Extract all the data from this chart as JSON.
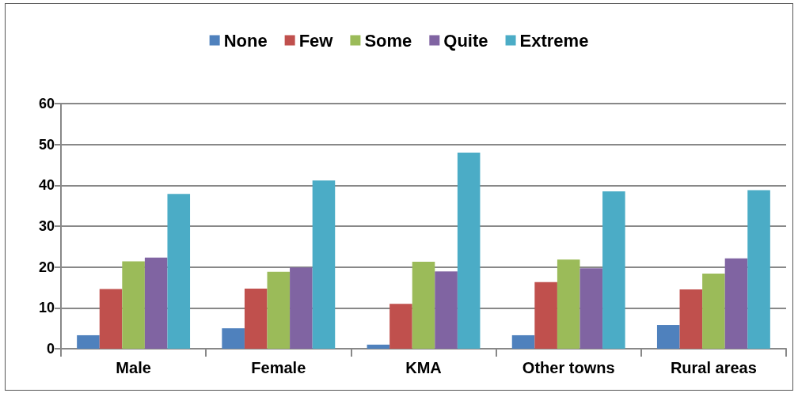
{
  "chart_data": {
    "type": "bar",
    "categories": [
      "Male",
      "Female",
      "KMA",
      "Other towns",
      "Rural areas"
    ],
    "series": [
      {
        "name": "None",
        "color": "#4f81bd",
        "values": [
          3.3,
          5.0,
          1.0,
          3.3,
          5.8
        ]
      },
      {
        "name": "Few",
        "color": "#c0504d",
        "values": [
          14.6,
          14.7,
          11.0,
          16.3,
          14.5
        ]
      },
      {
        "name": "Some",
        "color": "#9bbb59",
        "values": [
          21.4,
          18.8,
          21.3,
          21.8,
          18.4
        ]
      },
      {
        "name": "Quite",
        "color": "#8064a2",
        "values": [
          22.3,
          19.9,
          18.9,
          19.7,
          22.1
        ]
      },
      {
        "name": "Extreme",
        "color": "#4bacc6",
        "values": [
          37.9,
          41.2,
          48.0,
          38.5,
          38.8
        ]
      }
    ],
    "ylim": [
      0,
      60
    ],
    "yticks": [
      0,
      10,
      20,
      30,
      40,
      50,
      60
    ],
    "grid": "y",
    "legend": "top"
  }
}
